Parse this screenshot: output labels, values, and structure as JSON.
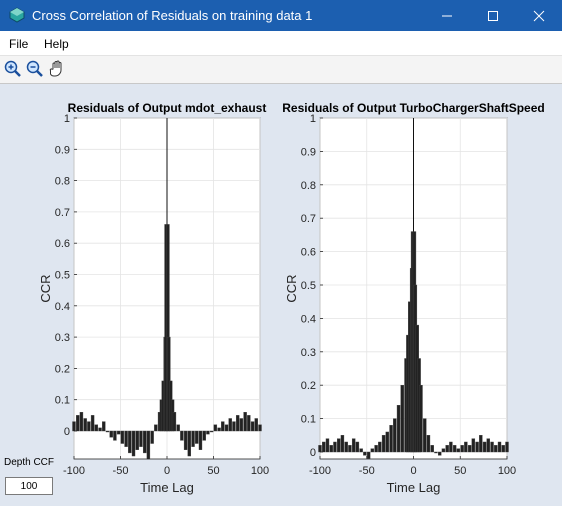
{
  "window": {
    "title": "Cross Correlation of Residuals on training data 1"
  },
  "menu": {
    "file": "File",
    "help": "Help"
  },
  "toolbar": {
    "icons": [
      "zoom-in-icon",
      "zoom-out-icon",
      "pan-hand-icon"
    ]
  },
  "controls": {
    "depth_label": "Depth CCF",
    "depth_value": "100"
  },
  "colors": {
    "titlebar": "#1c5fb0",
    "figure_bg": "#dfe6f0",
    "bars": "#222222"
  },
  "chart_data": [
    {
      "type": "bar",
      "title": "Residuals of Output mdot_exhaust",
      "xlabel": "Time Lag",
      "ylabel": "CCR",
      "xlim": [
        -100,
        100
      ],
      "ylim": [
        -0.2,
        1
      ],
      "xticks": [
        "-100",
        "-50",
        "0",
        "50",
        "100"
      ],
      "yticks": [
        "0",
        "0.1",
        "0.2",
        "0.3",
        "0.4",
        "0.5",
        "0.6",
        "0.7",
        "0.8",
        "0.9",
        "1"
      ],
      "grid": true,
      "peak": {
        "x": 0,
        "y": 1
      },
      "x": [
        -100,
        -96,
        -92,
        -88,
        -84,
        -80,
        -76,
        -72,
        -68,
        -64,
        -60,
        -56,
        -52,
        -48,
        -44,
        -40,
        -36,
        -32,
        -28,
        -24,
        -20,
        -16,
        -12,
        -8,
        -6,
        -4,
        -2,
        -1,
        0,
        1,
        2,
        4,
        6,
        8,
        12,
        16,
        20,
        24,
        28,
        32,
        36,
        40,
        44,
        48,
        52,
        56,
        60,
        64,
        68,
        72,
        76,
        80,
        84,
        88,
        92,
        96,
        100
      ],
      "values": [
        0.03,
        0.05,
        0.06,
        0.04,
        0.03,
        0.05,
        0.02,
        0.01,
        0.03,
        0.0,
        -0.02,
        -0.03,
        -0.01,
        -0.04,
        -0.05,
        -0.07,
        -0.08,
        -0.06,
        -0.05,
        -0.07,
        -0.09,
        -0.04,
        0.02,
        0.06,
        0.1,
        0.16,
        0.3,
        0.66,
        1.0,
        0.66,
        0.3,
        0.16,
        0.1,
        0.06,
        0.02,
        -0.03,
        -0.06,
        -0.08,
        -0.05,
        -0.04,
        -0.06,
        -0.03,
        -0.01,
        0.0,
        0.02,
        0.01,
        0.03,
        0.02,
        0.04,
        0.03,
        0.05,
        0.04,
        0.06,
        0.05,
        0.03,
        0.04,
        0.02
      ]
    },
    {
      "type": "bar",
      "title": "Residuals of Output TurboChargerShaftSpeed",
      "xlabel": "Time Lag",
      "ylabel": "CCR",
      "xlim": [
        -100,
        100
      ],
      "ylim": [
        -0.02,
        1
      ],
      "xticks": [
        "-100",
        "-50",
        "0",
        "50",
        "100"
      ],
      "yticks": [
        "0",
        "0.1",
        "0.2",
        "0.3",
        "0.4",
        "0.5",
        "0.6",
        "0.7",
        "0.8",
        "0.9",
        "1"
      ],
      "grid": true,
      "peak": {
        "x": 0,
        "y": 1
      },
      "x": [
        -100,
        -96,
        -92,
        -88,
        -84,
        -80,
        -76,
        -72,
        -68,
        -64,
        -60,
        -56,
        -52,
        -48,
        -44,
        -40,
        -36,
        -32,
        -28,
        -24,
        -20,
        -16,
        -12,
        -8,
        -6,
        -4,
        -2,
        -1,
        0,
        1,
        2,
        4,
        6,
        8,
        12,
        16,
        20,
        24,
        28,
        32,
        36,
        40,
        44,
        48,
        52,
        56,
        60,
        64,
        68,
        72,
        76,
        80,
        84,
        88,
        92,
        96,
        100
      ],
      "values": [
        0.02,
        0.03,
        0.04,
        0.02,
        0.03,
        0.04,
        0.05,
        0.03,
        0.02,
        0.04,
        0.03,
        0.01,
        -0.01,
        -0.02,
        0.01,
        0.02,
        0.03,
        0.05,
        0.06,
        0.08,
        0.1,
        0.14,
        0.2,
        0.28,
        0.35,
        0.45,
        0.55,
        0.66,
        1.0,
        0.66,
        0.5,
        0.38,
        0.28,
        0.2,
        0.1,
        0.05,
        0.02,
        0.0,
        -0.01,
        0.01,
        0.02,
        0.03,
        0.02,
        0.01,
        0.02,
        0.03,
        0.02,
        0.04,
        0.03,
        0.05,
        0.03,
        0.04,
        0.03,
        0.02,
        0.03,
        0.02,
        0.03
      ]
    }
  ]
}
